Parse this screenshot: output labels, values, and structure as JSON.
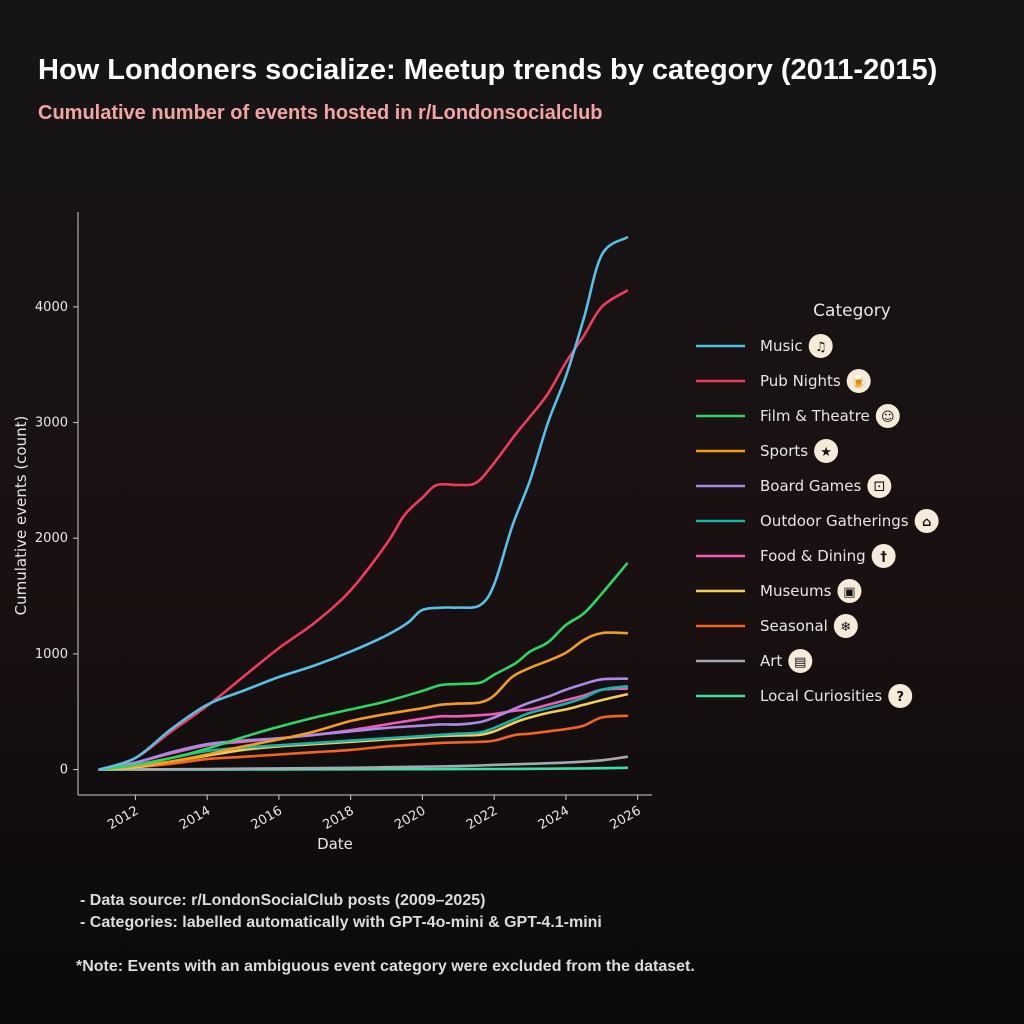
{
  "title": "How Londoners socialize: Meetup trends by category (2011-2015)",
  "subtitle": "Cumulative number of events hosted in r/Londonsocialclub",
  "notes": [
    "- Data source: r/LondonSocialClub posts (2009–2025)",
    "- Categories: labelled automatically with GPT-4o-mini & GPT-4.1-mini"
  ],
  "footnote": "*Note: Events with an ambiguous event category were excluded from the dataset.",
  "colors": {
    "axis": "#cccccc",
    "text": "#e6e6e6"
  },
  "chart_data": {
    "type": "line",
    "xlabel": "Date",
    "ylabel": "Cumulative events (count)",
    "xlim": [
      2010.4,
      2026.4
    ],
    "ylim": [
      -220,
      4820
    ],
    "x_ticks": [
      2012,
      2014,
      2016,
      2018,
      2020,
      2022,
      2024,
      2026
    ],
    "y_ticks": [
      0,
      1000,
      2000,
      3000,
      4000
    ],
    "legend_title": "Category",
    "legend_position": "right",
    "series": [
      {
        "name": "Music",
        "color": "#55c1e9",
        "icon": "music-icon",
        "glyph": "♫",
        "points": [
          [
            2011,
            0
          ],
          [
            2012,
            100
          ],
          [
            2013,
            350
          ],
          [
            2014,
            560
          ],
          [
            2015,
            680
          ],
          [
            2016,
            800
          ],
          [
            2017,
            900
          ],
          [
            2018,
            1020
          ],
          [
            2019,
            1160
          ],
          [
            2019.6,
            1270
          ],
          [
            2020,
            1380
          ],
          [
            2020.6,
            1400
          ],
          [
            2021,
            1400
          ],
          [
            2021.6,
            1420
          ],
          [
            2022,
            1600
          ],
          [
            2022.5,
            2100
          ],
          [
            2023,
            2500
          ],
          [
            2023.5,
            3000
          ],
          [
            2024,
            3400
          ],
          [
            2024.5,
            3900
          ],
          [
            2025,
            4450
          ],
          [
            2025.7,
            4600
          ]
        ]
      },
      {
        "name": "Pub Nights",
        "color": "#ef3c5d",
        "icon": "beer-mug-icon",
        "glyph": "🍺",
        "points": [
          [
            2011,
            0
          ],
          [
            2012,
            100
          ],
          [
            2013,
            330
          ],
          [
            2014,
            550
          ],
          [
            2015,
            800
          ],
          [
            2016,
            1050
          ],
          [
            2017,
            1270
          ],
          [
            2018,
            1550
          ],
          [
            2019,
            1950
          ],
          [
            2019.5,
            2200
          ],
          [
            2020,
            2350
          ],
          [
            2020.4,
            2460
          ],
          [
            2021,
            2460
          ],
          [
            2021.5,
            2480
          ],
          [
            2022,
            2650
          ],
          [
            2022.6,
            2900
          ],
          [
            2023,
            3050
          ],
          [
            2023.5,
            3250
          ],
          [
            2024,
            3520
          ],
          [
            2024.5,
            3750
          ],
          [
            2025,
            4000
          ],
          [
            2025.7,
            4140
          ]
        ]
      },
      {
        "name": "Film & Theatre",
        "color": "#2ed660",
        "icon": "theatre-mask-icon",
        "glyph": "☺",
        "points": [
          [
            2011,
            0
          ],
          [
            2012,
            40
          ],
          [
            2013,
            100
          ],
          [
            2014,
            180
          ],
          [
            2015,
            280
          ],
          [
            2016,
            370
          ],
          [
            2017,
            450
          ],
          [
            2018,
            520
          ],
          [
            2019,
            590
          ],
          [
            2020,
            680
          ],
          [
            2020.5,
            730
          ],
          [
            2021,
            740
          ],
          [
            2021.6,
            750
          ],
          [
            2022,
            820
          ],
          [
            2022.6,
            920
          ],
          [
            2023,
            1020
          ],
          [
            2023.5,
            1100
          ],
          [
            2024,
            1250
          ],
          [
            2024.5,
            1350
          ],
          [
            2025,
            1520
          ],
          [
            2025.7,
            1780
          ]
        ]
      },
      {
        "name": "Sports",
        "color": "#f39c1f",
        "icon": "runner-icon",
        "glyph": "★",
        "points": [
          [
            2011,
            0
          ],
          [
            2012,
            30
          ],
          [
            2013,
            70
          ],
          [
            2014,
            130
          ],
          [
            2015,
            200
          ],
          [
            2016,
            260
          ],
          [
            2017,
            330
          ],
          [
            2018,
            420
          ],
          [
            2019,
            480
          ],
          [
            2020,
            530
          ],
          [
            2020.5,
            560
          ],
          [
            2021,
            570
          ],
          [
            2021.6,
            580
          ],
          [
            2022,
            640
          ],
          [
            2022.5,
            800
          ],
          [
            2023,
            880
          ],
          [
            2023.5,
            940
          ],
          [
            2024,
            1010
          ],
          [
            2024.5,
            1120
          ],
          [
            2025,
            1180
          ],
          [
            2025.7,
            1180
          ]
        ]
      },
      {
        "name": "Board Games",
        "color": "#a98ae6",
        "icon": "dice-icon",
        "glyph": "⚀",
        "points": [
          [
            2011,
            0
          ],
          [
            2012,
            60
          ],
          [
            2013,
            150
          ],
          [
            2014,
            220
          ],
          [
            2015,
            250
          ],
          [
            2016,
            270
          ],
          [
            2017,
            300
          ],
          [
            2018,
            330
          ],
          [
            2019,
            360
          ],
          [
            2020,
            380
          ],
          [
            2020.5,
            390
          ],
          [
            2021,
            390
          ],
          [
            2021.6,
            410
          ],
          [
            2022,
            450
          ],
          [
            2022.6,
            530
          ],
          [
            2023,
            580
          ],
          [
            2023.5,
            630
          ],
          [
            2024,
            690
          ],
          [
            2024.5,
            740
          ],
          [
            2025,
            780
          ],
          [
            2025.7,
            785
          ]
        ]
      },
      {
        "name": "Outdoor Gatherings",
        "color": "#16b3a6",
        "icon": "picnic-basket-icon",
        "glyph": "⌂",
        "points": [
          [
            2011,
            0
          ],
          [
            2012,
            40
          ],
          [
            2013,
            100
          ],
          [
            2014,
            160
          ],
          [
            2015,
            190
          ],
          [
            2016,
            210
          ],
          [
            2017,
            230
          ],
          [
            2018,
            250
          ],
          [
            2019,
            270
          ],
          [
            2020,
            290
          ],
          [
            2020.5,
            300
          ],
          [
            2021,
            310
          ],
          [
            2021.6,
            320
          ],
          [
            2022,
            360
          ],
          [
            2022.6,
            440
          ],
          [
            2023,
            490
          ],
          [
            2023.5,
            530
          ],
          [
            2024,
            570
          ],
          [
            2024.5,
            620
          ],
          [
            2025,
            690
          ],
          [
            2025.7,
            720
          ]
        ]
      },
      {
        "name": "Food & Dining",
        "color": "#f05ab8",
        "icon": "cutlery-icon",
        "glyph": "†",
        "points": [
          [
            2011,
            0
          ],
          [
            2012,
            60
          ],
          [
            2013,
            140
          ],
          [
            2014,
            210
          ],
          [
            2015,
            240
          ],
          [
            2016,
            270
          ],
          [
            2017,
            300
          ],
          [
            2018,
            340
          ],
          [
            2019,
            390
          ],
          [
            2020,
            440
          ],
          [
            2020.5,
            460
          ],
          [
            2021,
            460
          ],
          [
            2021.6,
            470
          ],
          [
            2022,
            480
          ],
          [
            2022.6,
            510
          ],
          [
            2023,
            520
          ],
          [
            2023.5,
            560
          ],
          [
            2024,
            600
          ],
          [
            2024.5,
            640
          ],
          [
            2025,
            690
          ],
          [
            2025.7,
            700
          ]
        ]
      },
      {
        "name": "Museums",
        "color": "#f4cc58",
        "icon": "ticket-icon",
        "glyph": "▣",
        "points": [
          [
            2011,
            0
          ],
          [
            2012,
            20
          ],
          [
            2013,
            70
          ],
          [
            2014,
            120
          ],
          [
            2015,
            170
          ],
          [
            2016,
            200
          ],
          [
            2017,
            220
          ],
          [
            2018,
            240
          ],
          [
            2019,
            260
          ],
          [
            2020,
            280
          ],
          [
            2020.5,
            290
          ],
          [
            2021,
            295
          ],
          [
            2021.6,
            300
          ],
          [
            2022,
            330
          ],
          [
            2022.6,
            410
          ],
          [
            2023,
            450
          ],
          [
            2023.5,
            490
          ],
          [
            2024,
            520
          ],
          [
            2024.5,
            560
          ],
          [
            2025,
            600
          ],
          [
            2025.7,
            650
          ]
        ]
      },
      {
        "name": "Seasonal",
        "color": "#f4641c",
        "icon": "family-icon",
        "glyph": "❄",
        "points": [
          [
            2011,
            0
          ],
          [
            2012,
            20
          ],
          [
            2013,
            50
          ],
          [
            2014,
            90
          ],
          [
            2015,
            110
          ],
          [
            2016,
            130
          ],
          [
            2017,
            150
          ],
          [
            2018,
            170
          ],
          [
            2019,
            200
          ],
          [
            2020,
            220
          ],
          [
            2020.5,
            230
          ],
          [
            2021,
            235
          ],
          [
            2021.6,
            240
          ],
          [
            2022,
            250
          ],
          [
            2022.6,
            300
          ],
          [
            2023,
            310
          ],
          [
            2023.5,
            330
          ],
          [
            2024,
            350
          ],
          [
            2024.5,
            380
          ],
          [
            2025,
            450
          ],
          [
            2025.7,
            465
          ]
        ]
      },
      {
        "name": "Art",
        "color": "#a3a9b5",
        "icon": "open-book-icon",
        "glyph": "▤",
        "points": [
          [
            2011,
            0
          ],
          [
            2014,
            5
          ],
          [
            2016,
            10
          ],
          [
            2018,
            15
          ],
          [
            2019,
            20
          ],
          [
            2020,
            25
          ],
          [
            2021,
            30
          ],
          [
            2021.6,
            35
          ],
          [
            2022,
            40
          ],
          [
            2023,
            50
          ],
          [
            2024,
            60
          ],
          [
            2025,
            80
          ],
          [
            2025.7,
            110
          ]
        ]
      },
      {
        "name": "Local Curiosities",
        "color": "#3ddfa6",
        "icon": "question-mark-icon",
        "glyph": "?",
        "points": [
          [
            2011,
            0
          ],
          [
            2014,
            0
          ],
          [
            2016,
            1
          ],
          [
            2018,
            2
          ],
          [
            2020,
            3
          ],
          [
            2022,
            5
          ],
          [
            2024,
            8
          ],
          [
            2025,
            12
          ],
          [
            2025.7,
            15
          ]
        ]
      }
    ]
  }
}
